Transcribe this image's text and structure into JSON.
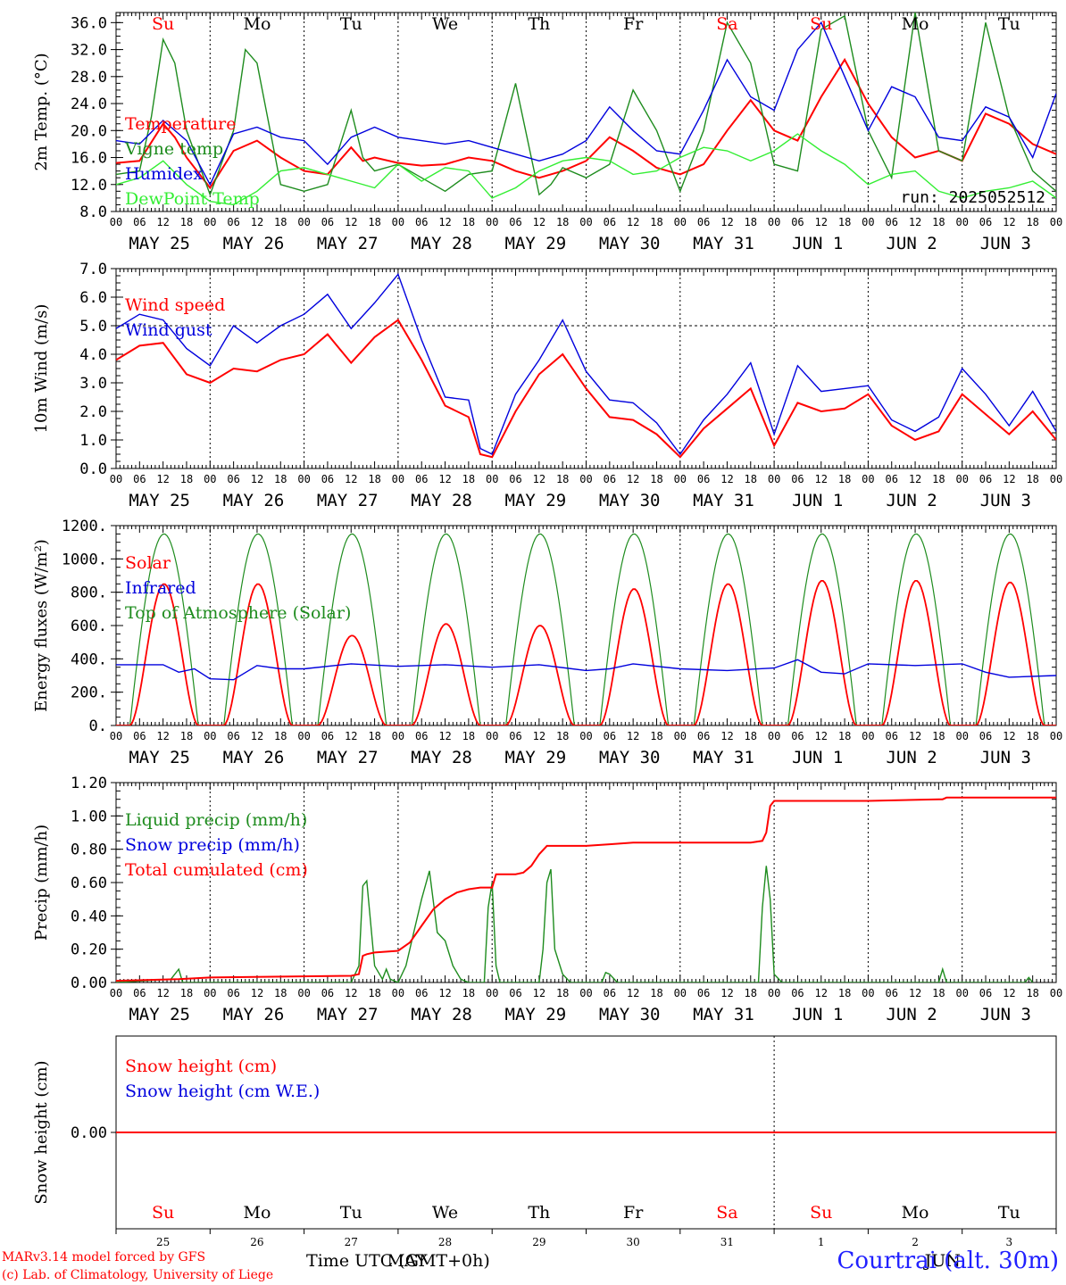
{
  "colors": {
    "red": "#ff0000",
    "green": "#1e8c1e",
    "blue": "#0000dd",
    "lightgreen": "#33ee33",
    "black": "#000000",
    "brightblue": "#2020ff"
  },
  "footer": {
    "credit_line1": "MARv3.14 model forced by GFS",
    "credit_line2": "(c) Lab. of Climatology, University of Liege",
    "time_label": "Time UTC (GMT+0h)",
    "month_label": "MAY",
    "month_label2": "JUN",
    "station": "Courtrai (alt. 30m)"
  },
  "chart_data": [
    {
      "type": "line",
      "id": "temp",
      "ylabel": "2m Temp. (°C)",
      "ylim": [
        8,
        37.5
      ],
      "yticks": [
        8,
        12,
        16,
        20,
        24,
        28,
        32,
        36
      ],
      "tick_labels": [
        "8.0",
        "12.0",
        "16.0",
        "20.0",
        "24.0",
        "28.0",
        "32.0",
        "36.0"
      ],
      "x_range_hours": [
        0,
        240
      ],
      "x_tick_hours": [
        "00",
        "06",
        "12",
        "18"
      ],
      "date_labels": [
        "MAY 25",
        "MAY 26",
        "MAY 27",
        "MAY 28",
        "MAY 29",
        "MAY 30",
        "MAY 31",
        "JUN  1",
        "JUN  2",
        "JUN  3"
      ],
      "day_names": [
        "Su",
        "Mo",
        "Tu",
        "We",
        "Th",
        "Fr",
        "Sa",
        "Su",
        "Mo",
        "Tu"
      ],
      "day_name_colors": [
        "red",
        "black",
        "black",
        "black",
        "black",
        "black",
        "red",
        "red",
        "black",
        "black"
      ],
      "annotation": "run: 2025052512",
      "legend": [
        {
          "name": "Temperature",
          "color": "red"
        },
        {
          "name": "Vigne temp",
          "color": "green"
        },
        {
          "name": "Humidex",
          "color": "blue"
        },
        {
          "name": "DewPoint Temp",
          "color": "lightgreen"
        }
      ],
      "series": [
        {
          "name": "Temperature",
          "color": "red",
          "x": [
            0,
            6,
            12,
            15,
            18,
            24,
            30,
            36,
            42,
            48,
            54,
            60,
            63,
            66,
            72,
            78,
            84,
            90,
            96,
            102,
            108,
            111,
            114,
            120,
            126,
            132,
            138,
            144,
            150,
            156,
            162,
            168,
            174,
            180,
            186,
            192,
            198,
            204,
            210,
            216,
            222,
            228,
            234,
            240
          ],
          "values": [
            15.2,
            15.5,
            21,
            19,
            16,
            11.5,
            17,
            18.5,
            16,
            14,
            13.5,
            17.5,
            15.5,
            16,
            15.2,
            14.8,
            15,
            16,
            15.5,
            14,
            13,
            13.5,
            14,
            15.5,
            19,
            17,
            14.5,
            13.5,
            15,
            20,
            24.5,
            20,
            18.5,
            25,
            30.5,
            24,
            19,
            16,
            17,
            15.5,
            22.5,
            21,
            18,
            16.5
          ]
        },
        {
          "name": "Vigne temp",
          "color": "green",
          "x": [
            0,
            6,
            9,
            12,
            15,
            18,
            24,
            30,
            33,
            36,
            42,
            48,
            54,
            60,
            63,
            66,
            72,
            78,
            84,
            90,
            96,
            102,
            108,
            111,
            114,
            120,
            126,
            132,
            138,
            144,
            150,
            156,
            162,
            168,
            174,
            180,
            186,
            192,
            198,
            204,
            210,
            216,
            222,
            228,
            234,
            240
          ],
          "values": [
            13.5,
            14,
            22,
            33.5,
            30,
            20,
            10.5,
            20,
            32,
            30,
            12,
            11,
            12,
            23,
            16,
            14,
            15,
            13,
            11,
            13.5,
            14,
            27,
            10.5,
            12,
            14.5,
            13,
            15,
            26,
            20,
            11,
            20,
            36,
            30,
            15,
            14,
            35,
            37,
            20,
            13,
            37.5,
            17,
            15.5,
            36,
            22,
            14,
            11
          ]
        },
        {
          "name": "Humidex",
          "color": "blue",
          "x": [
            0,
            6,
            12,
            18,
            24,
            30,
            36,
            42,
            48,
            54,
            60,
            66,
            72,
            78,
            84,
            90,
            96,
            102,
            108,
            114,
            120,
            126,
            132,
            138,
            144,
            150,
            156,
            162,
            168,
            174,
            180,
            186,
            192,
            198,
            204,
            210,
            216,
            222,
            228,
            234,
            240
          ],
          "values": [
            18.5,
            18,
            21.5,
            18.5,
            12,
            19.5,
            20.5,
            19,
            18.5,
            15,
            19,
            20.5,
            19,
            18.5,
            18,
            18.5,
            17.5,
            16.5,
            15.5,
            16.5,
            18.5,
            23.5,
            20,
            17,
            16.5,
            23,
            30.5,
            25,
            23,
            32,
            36,
            28,
            20,
            26.5,
            25,
            19,
            18.5,
            23.5,
            22,
            16,
            25.5
          ]
        },
        {
          "name": "DewPoint Temp",
          "color": "lightgreen",
          "x": [
            0,
            6,
            12,
            18,
            24,
            30,
            36,
            42,
            48,
            54,
            60,
            66,
            72,
            78,
            84,
            90,
            96,
            102,
            108,
            114,
            120,
            126,
            132,
            138,
            144,
            150,
            156,
            162,
            168,
            174,
            180,
            186,
            192,
            198,
            204,
            210,
            216,
            222,
            228,
            234,
            240
          ],
          "values": [
            12,
            13,
            15.5,
            12,
            9.5,
            9,
            11,
            14,
            14.5,
            13.5,
            12.5,
            11.5,
            15,
            12.5,
            14.5,
            14,
            10,
            11.5,
            14,
            15.5,
            16,
            15.5,
            13.5,
            14,
            16,
            17.5,
            17,
            15.5,
            17,
            19.5,
            17,
            15,
            12,
            13.5,
            14,
            11,
            10,
            11,
            11.5,
            12.5,
            10
          ]
        }
      ]
    },
    {
      "type": "line",
      "id": "wind",
      "ylabel": "10m Wind (m/s)",
      "ylim": [
        0,
        7
      ],
      "yticks": [
        0,
        1,
        2,
        3,
        4,
        5,
        6,
        7
      ],
      "tick_labels": [
        "0.0",
        "1.0",
        "2.0",
        "3.0",
        "4.0",
        "5.0",
        "6.0",
        "7.0"
      ],
      "reference_line": 5,
      "date_labels": [
        "MAY 25",
        "MAY 26",
        "MAY 27",
        "MAY 28",
        "MAY 29",
        "MAY 30",
        "MAY 31",
        "JUN  1",
        "JUN  2",
        "JUN  3"
      ],
      "legend": [
        {
          "name": "Wind speed",
          "color": "red"
        },
        {
          "name": "Wind gust",
          "color": "blue"
        }
      ],
      "series": [
        {
          "name": "Wind speed",
          "color": "red",
          "x": [
            0,
            6,
            12,
            18,
            24,
            30,
            36,
            42,
            48,
            54,
            60,
            66,
            72,
            78,
            84,
            90,
            93,
            96,
            102,
            108,
            114,
            120,
            126,
            132,
            138,
            144,
            150,
            156,
            162,
            168,
            174,
            180,
            186,
            192,
            198,
            204,
            210,
            216,
            222,
            228,
            234,
            240
          ],
          "values": [
            3.8,
            4.3,
            4.4,
            3.3,
            3,
            3.5,
            3.4,
            3.8,
            4,
            4.7,
            3.7,
            4.6,
            5.2,
            3.8,
            2.2,
            1.8,
            0.5,
            0.4,
            2,
            3.3,
            4,
            2.8,
            1.8,
            1.7,
            1.2,
            0.4,
            1.4,
            2.1,
            2.8,
            0.8,
            2.3,
            2.0,
            2.1,
            2.6,
            1.5,
            1.0,
            1.3,
            2.6,
            1.9,
            1.2,
            2.0,
            1.0
          ]
        },
        {
          "name": "Wind gust",
          "color": "blue",
          "x": [
            0,
            6,
            12,
            18,
            24,
            30,
            36,
            42,
            48,
            54,
            60,
            66,
            72,
            78,
            84,
            90,
            93,
            96,
            102,
            108,
            114,
            120,
            126,
            132,
            138,
            144,
            150,
            156,
            162,
            168,
            174,
            180,
            186,
            192,
            198,
            204,
            210,
            216,
            222,
            228,
            234,
            240
          ],
          "values": [
            4.9,
            5.4,
            5.2,
            4.2,
            3.6,
            5,
            4.4,
            5,
            5.4,
            6.1,
            4.9,
            5.8,
            6.8,
            4.5,
            2.5,
            2.4,
            0.7,
            0.5,
            2.6,
            3.8,
            5.2,
            3.4,
            2.4,
            2.3,
            1.6,
            0.5,
            1.7,
            2.6,
            3.7,
            1.2,
            3.6,
            2.7,
            2.8,
            2.9,
            1.7,
            1.3,
            1.8,
            3.5,
            2.6,
            1.5,
            2.7,
            1.3
          ]
        }
      ]
    },
    {
      "type": "line",
      "id": "energy",
      "ylabel": "Energy fluxes (W/m²)",
      "ylim": [
        0,
        1200
      ],
      "yticks": [
        0,
        200,
        400,
        600,
        800,
        1000,
        1200
      ],
      "tick_labels": [
        "0.",
        "200.",
        "400.",
        "600.",
        "800.",
        "1000.",
        "1200."
      ],
      "date_labels": [
        "MAY 25",
        "MAY 26",
        "MAY 27",
        "MAY 28",
        "MAY 29",
        "MAY 30",
        "MAY 31",
        "JUN  1",
        "JUN  2",
        "JUN  3"
      ],
      "legend": [
        {
          "name": "Solar",
          "color": "red"
        },
        {
          "name": "Infrared",
          "color": "blue"
        },
        {
          "name": "Top of Atmosphere (Solar)",
          "color": "green"
        }
      ],
      "toa_peak": 1150,
      "solar_daily_peaks": [
        850,
        850,
        540,
        610,
        600,
        820,
        850,
        870,
        870,
        860
      ],
      "series": [
        {
          "name": "Infrared",
          "color": "blue",
          "x": [
            0,
            12,
            16,
            20,
            24,
            30,
            36,
            42,
            48,
            60,
            72,
            84,
            96,
            108,
            120,
            126,
            132,
            144,
            156,
            168,
            174,
            180,
            186,
            192,
            204,
            216,
            222,
            228,
            240
          ],
          "values": [
            365,
            365,
            320,
            340,
            280,
            275,
            360,
            340,
            340,
            370,
            355,
            365,
            350,
            365,
            330,
            340,
            370,
            340,
            330,
            345,
            395,
            320,
            310,
            370,
            360,
            370,
            320,
            290,
            300
          ]
        }
      ]
    },
    {
      "type": "line",
      "id": "precip",
      "ylabel": "Precip (mm/h)",
      "ylim": [
        0,
        1.2
      ],
      "yticks": [
        0,
        0.2,
        0.4,
        0.6,
        0.8,
        1.0,
        1.2
      ],
      "tick_labels": [
        "0.00",
        "0.20",
        "0.40",
        "0.60",
        "0.80",
        "1.00",
        "1.20"
      ],
      "date_labels": [
        "MAY 25",
        "MAY 26",
        "MAY 27",
        "MAY 28",
        "MAY 29",
        "MAY 30",
        "MAY 31",
        "JUN  1",
        "JUN  2",
        "JUN  3"
      ],
      "legend": [
        {
          "name": "Liquid precip (mm/h)",
          "color": "green"
        },
        {
          "name": "Snow precip (mm/h)",
          "color": "blue"
        },
        {
          "name": "Total cumulated (cm)",
          "color": "red"
        }
      ],
      "series": [
        {
          "name": "Liquid precip (mm/h)",
          "color": "green",
          "x": [
            0,
            14,
            16,
            17,
            60,
            62,
            63,
            64,
            66,
            68,
            69,
            70,
            72,
            74,
            76,
            78,
            80,
            82,
            84,
            86,
            88,
            90,
            94,
            95,
            96,
            97,
            98,
            108,
            109,
            110,
            111,
            112,
            114,
            116,
            118,
            124,
            125,
            126,
            128,
            164,
            165,
            166,
            167,
            168,
            170,
            210,
            211,
            212,
            232,
            233,
            234
          ],
          "values": [
            0,
            0.02,
            0.08,
            0,
            0,
            0.1,
            0.58,
            0.61,
            0.1,
            0.02,
            0.08,
            0.02,
            0,
            0.1,
            0.3,
            0.5,
            0.67,
            0.3,
            0.25,
            0.1,
            0.02,
            0,
            0,
            0.45,
            0.6,
            0.1,
            0,
            0,
            0.2,
            0.6,
            0.68,
            0.2,
            0.05,
            0,
            0,
            0,
            0.06,
            0.05,
            0,
            0,
            0.45,
            0.7,
            0.5,
            0.05,
            0,
            0,
            0.08,
            0,
            0,
            0.03,
            0
          ]
        },
        {
          "name": "Total cumulated (cm)",
          "color": "red",
          "x": [
            0,
            16,
            24,
            60,
            62,
            63,
            64,
            66,
            72,
            75,
            78,
            81,
            84,
            87,
            90,
            93,
            96,
            97,
            98,
            102,
            104,
            106,
            108,
            110,
            114,
            120,
            126,
            132,
            144,
            156,
            162,
            165,
            166,
            167,
            168,
            192,
            210,
            211,
            212,
            240
          ],
          "values": [
            0.01,
            0.02,
            0.03,
            0.04,
            0.05,
            0.16,
            0.17,
            0.18,
            0.19,
            0.24,
            0.34,
            0.44,
            0.5,
            0.54,
            0.56,
            0.57,
            0.57,
            0.65,
            0.65,
            0.65,
            0.66,
            0.7,
            0.77,
            0.82,
            0.82,
            0.82,
            0.83,
            0.84,
            0.84,
            0.84,
            0.84,
            0.85,
            0.9,
            1.06,
            1.09,
            1.09,
            1.1,
            1.1,
            1.11,
            1.11
          ]
        }
      ]
    },
    {
      "type": "line",
      "id": "snow",
      "ylabel": "Snow height (cm)",
      "ylim": [
        -1,
        1
      ],
      "yticks": [
        0
      ],
      "tick_labels": [
        "0.00"
      ],
      "legend": [
        {
          "name": "Snow height (cm)",
          "color": "red"
        },
        {
          "name": "Snow height (cm W.E.)",
          "color": "blue"
        }
      ],
      "day_names": [
        "Su",
        "Mo",
        "Tu",
        "We",
        "Th",
        "Fr",
        "Sa",
        "Su",
        "Mo",
        "Tu"
      ],
      "day_name_colors": [
        "red",
        "black",
        "black",
        "black",
        "black",
        "black",
        "red",
        "red",
        "black",
        "black"
      ],
      "day_numbers": [
        "25",
        "26",
        "27",
        "28",
        "29",
        "30",
        "31",
        "1",
        "2",
        "3"
      ],
      "series": [
        {
          "name": "Snow height (cm)",
          "color": "red",
          "x": [
            0,
            240
          ],
          "values": [
            0,
            0
          ]
        }
      ]
    }
  ]
}
